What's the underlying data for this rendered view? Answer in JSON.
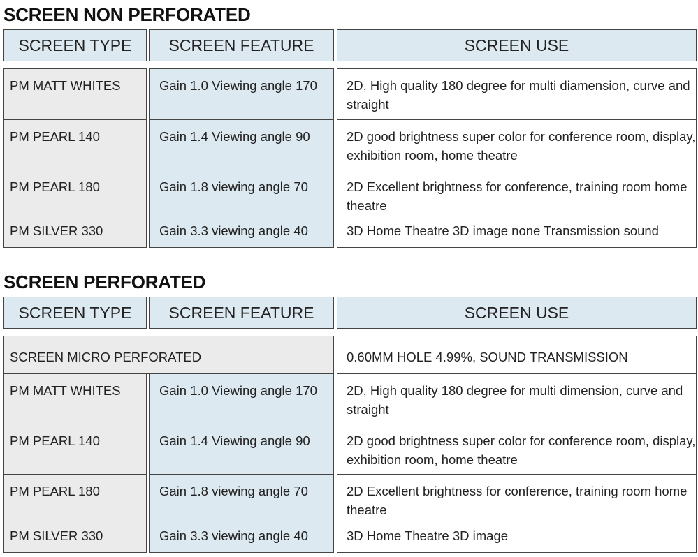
{
  "colors": {
    "header_bg": "#dde9f1",
    "type_bg": "#ebebeb",
    "feature_bg": "#dde9f1",
    "use_bg": "#ffffff",
    "border": "#444444"
  },
  "non_perforated": {
    "title": "SCREEN NON PERFORATED",
    "headers": [
      "SCREEN TYPE",
      "SCREEN FEATURE",
      "SCREEN USE"
    ],
    "rows": [
      {
        "type": "PM MATT WHITES",
        "feature": "Gain 1.0 Viewing angle 170",
        "use": "2D, High quality 180 degree for multi diamension, curve and straight"
      },
      {
        "type": "PM PEARL 140",
        "feature": "Gain 1.4 Viewing angle 90",
        "use": "2D good brightness super color for conference room, display, exhibition room, home theatre"
      },
      {
        "type": "PM PEARL 180",
        "feature": "Gain 1.8 viewing angle 70",
        "use": "2D Excellent brightness for conference, training room home theatre"
      },
      {
        "type": "PM SILVER 330",
        "feature": "Gain 3.3 viewing angle 40",
        "use": "3D Home Theatre 3D image none Transmission sound"
      }
    ]
  },
  "perforated": {
    "title": "SCREEN PERFORATED",
    "headers": [
      "SCREEN TYPE",
      "SCREEN FEATURE",
      "SCREEN USE"
    ],
    "micro": {
      "label": "SCREEN MICRO PERFORATED",
      "use": "0.60MM HOLE 4.99%, SOUND TRANSMISSION"
    },
    "rows": [
      {
        "type": "PM MATT WHITES",
        "feature": "Gain 1.0 Viewing angle 170",
        "use": "2D, High quality 180 degree for multi dimension, curve and straight"
      },
      {
        "type": "PM PEARL 140",
        "feature": "Gain 1.4 Viewing angle 90",
        "use": "2D good brightness super color for conference room, display, exhibition room, home theatre"
      },
      {
        "type": "PM PEARL 180",
        "feature": "Gain 1.8 viewing angle 70",
        "use": "2D Excellent brightness for conference, training room home theatre"
      },
      {
        "type": "PM SILVER 330",
        "feature": "Gain 3.3 viewing angle 40",
        "use": "3D Home Theatre 3D image"
      }
    ]
  }
}
